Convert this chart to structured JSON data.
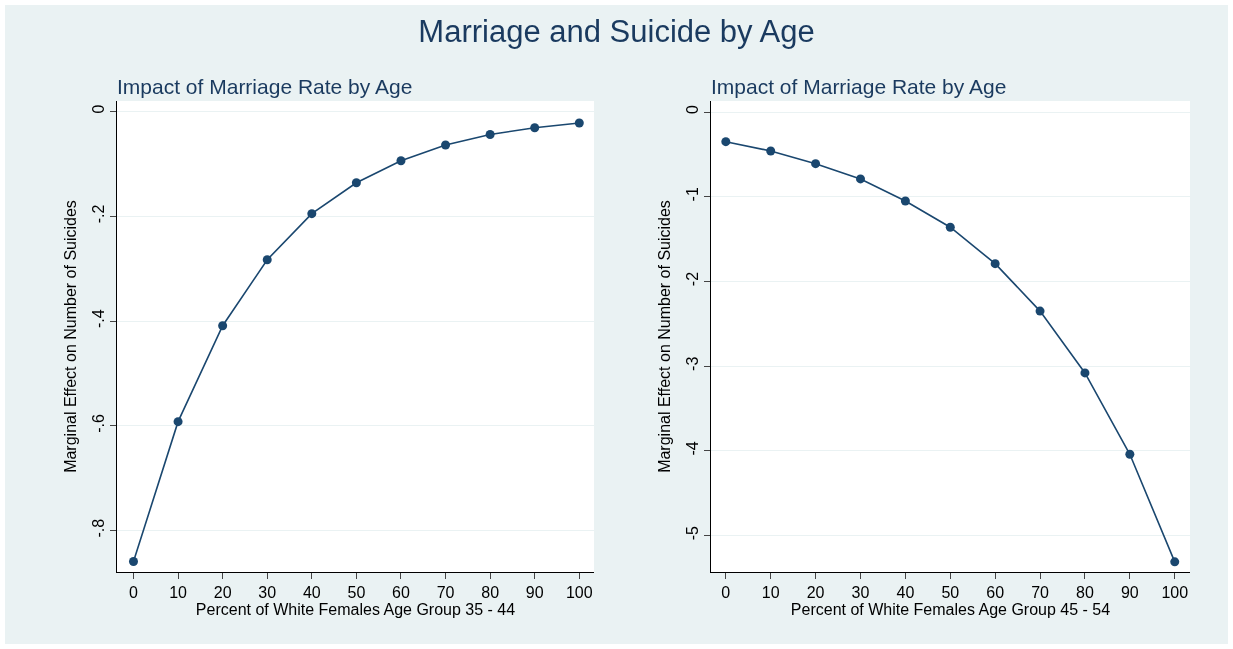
{
  "chart_data": [
    {
      "type": "other",
      "title": "Marriage and Suicide by Age"
    },
    {
      "type": "line",
      "title": "Impact of Marriage Rate by Age",
      "xlabel": "Percent of White Females Age Group 35 - 44",
      "ylabel": "Marginal Effect on Number of Suicides",
      "x": [
        0,
        10,
        20,
        30,
        40,
        50,
        60,
        70,
        80,
        90,
        100
      ],
      "series": [
        {
          "color": "#1a476f",
          "values": [
            -0.859,
            -0.592,
            -0.409,
            -0.283,
            -0.195,
            -0.136,
            -0.094,
            -0.064,
            -0.044,
            -0.031,
            -0.022
          ]
        }
      ],
      "xlim": [
        -3.7,
        103.3
      ],
      "xticks": [
        0,
        10,
        20,
        30,
        40,
        50,
        60,
        70,
        80,
        90,
        100
      ],
      "ylim": [
        -0.879,
        0.02
      ],
      "yticks": [
        {
          "value": 0,
          "label": "0"
        },
        {
          "value": -0.2,
          "label": "-.2"
        },
        {
          "value": -0.4,
          "label": "-.4"
        },
        {
          "value": -0.6,
          "label": "-.6"
        },
        {
          "value": -0.8,
          "label": "-.8"
        }
      ],
      "grid": "y",
      "marker": "circle"
    },
    {
      "type": "line",
      "title": "Impact of Marriage Rate by Age",
      "xlabel": "Percent of White Females Age Group 45 - 54",
      "ylabel": "Marginal Effect on Number of Suicides",
      "x": [
        0,
        10,
        20,
        30,
        40,
        50,
        60,
        70,
        80,
        90,
        100
      ],
      "series": [
        {
          "color": "#1a476f",
          "values": [
            -0.35,
            -0.46,
            -0.61,
            -0.79,
            -1.05,
            -1.36,
            -1.79,
            -2.35,
            -3.08,
            -4.04,
            -5.31
          ]
        }
      ],
      "xlim": [
        -3.3,
        103.4
      ],
      "xticks": [
        0,
        10,
        20,
        30,
        40,
        50,
        60,
        70,
        80,
        90,
        100
      ],
      "ylim": [
        -5.43,
        0.13
      ],
      "yticks": [
        0,
        -1,
        -2,
        -3,
        -4,
        -5
      ],
      "grid": "y",
      "marker": "circle"
    }
  ]
}
